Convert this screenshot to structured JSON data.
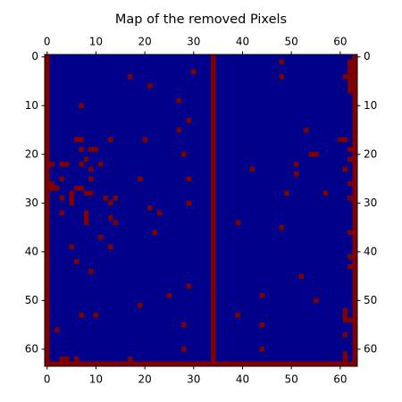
{
  "chart_data": {
    "type": "heatmap",
    "title": "Map of the removed Pixels",
    "background_color": "#00008b",
    "color": "#7f0000",
    "xlim": [
      -0.5,
      63.5
    ],
    "ylim": [
      63.5,
      -0.5
    ],
    "xticks": [
      0,
      10,
      20,
      30,
      40,
      50,
      60
    ],
    "yticks": [
      0,
      10,
      20,
      30,
      40,
      50,
      60
    ],
    "cells": {
      "x": [
        0,
        34,
        63,
        0,
        30,
        17,
        21,
        27,
        7,
        29,
        27,
        6,
        13,
        20,
        9,
        7,
        28,
        8,
        1,
        3,
        7,
        11,
        9,
        3,
        9,
        19,
        29,
        1,
        2,
        6,
        8,
        5,
        5,
        3,
        12,
        14,
        13,
        29,
        21,
        23,
        3,
        8,
        13,
        14,
        22,
        11,
        5,
        13,
        6,
        9,
        29,
        25,
        19,
        7,
        10,
        28,
        2,
        28,
        3,
        6,
        17,
        48,
        48,
        53,
        54,
        42,
        51,
        51,
        49,
        57,
        39,
        48,
        44,
        52,
        55,
        39,
        44,
        44,
        62,
        61,
        60,
        62,
        62,
        61,
        62,
        62,
        62,
        62,
        62,
        61,
        62,
        61,
        61
      ],
      "y": [
        0,
        0,
        0,
        63,
        3,
        4,
        6,
        9,
        10,
        13,
        15,
        17,
        17,
        17,
        19,
        19,
        20,
        21,
        22,
        22,
        22,
        22,
        23,
        25,
        25,
        25,
        25,
        26,
        27,
        27,
        28,
        28,
        29,
        29,
        29,
        29,
        30,
        30,
        31,
        32,
        32,
        32,
        33,
        34,
        36,
        37,
        39,
        39,
        42,
        44,
        47,
        49,
        51,
        53,
        53,
        55,
        56,
        60,
        62,
        62,
        62,
        1,
        4,
        15,
        20,
        23,
        22,
        24,
        28,
        28,
        34,
        35,
        49,
        45,
        50,
        53,
        55,
        60,
        1,
        4,
        17,
        19,
        21,
        23,
        26,
        29,
        36,
        41,
        43,
        52,
        54,
        57,
        61
      ],
      "width": [
        1,
        1,
        1,
        64,
        1,
        1,
        1,
        1,
        1,
        1,
        1,
        2,
        1,
        1,
        2,
        1,
        1,
        1,
        1,
        2,
        1,
        1,
        1,
        1,
        1,
        1,
        1,
        1,
        1,
        2,
        2,
        1,
        1,
        1,
        1,
        1,
        1,
        1,
        1,
        1,
        1,
        1,
        1,
        1,
        1,
        1,
        1,
        1,
        1,
        1,
        1,
        1,
        1,
        1,
        1,
        1,
        1,
        1,
        2,
        1,
        1,
        1,
        1,
        1,
        2,
        1,
        1,
        1,
        1,
        1,
        1,
        1,
        1,
        1,
        1,
        1,
        1,
        1,
        1,
        1,
        2,
        1,
        1,
        1,
        1,
        1,
        1,
        1,
        1,
        1,
        1,
        1,
        1
      ],
      "height": [
        64,
        64,
        64,
        1,
        1,
        1,
        1,
        1,
        1,
        1,
        1,
        1,
        1,
        1,
        1,
        1,
        1,
        1,
        1,
        1,
        1,
        1,
        1,
        1,
        1,
        1,
        1,
        2,
        1,
        1,
        1,
        1,
        2,
        1,
        1,
        1,
        1,
        1,
        1,
        1,
        1,
        3,
        1,
        1,
        1,
        1,
        1,
        1,
        1,
        1,
        1,
        1,
        1,
        1,
        1,
        1,
        1,
        1,
        1,
        1,
        1,
        1,
        1,
        1,
        1,
        1,
        1,
        1,
        1,
        1,
        1,
        1,
        1,
        1,
        1,
        1,
        1,
        1,
        7,
        1,
        1,
        1,
        1,
        1,
        1,
        1,
        1,
        1,
        1,
        3,
        1,
        1,
        2
      ]
    }
  }
}
